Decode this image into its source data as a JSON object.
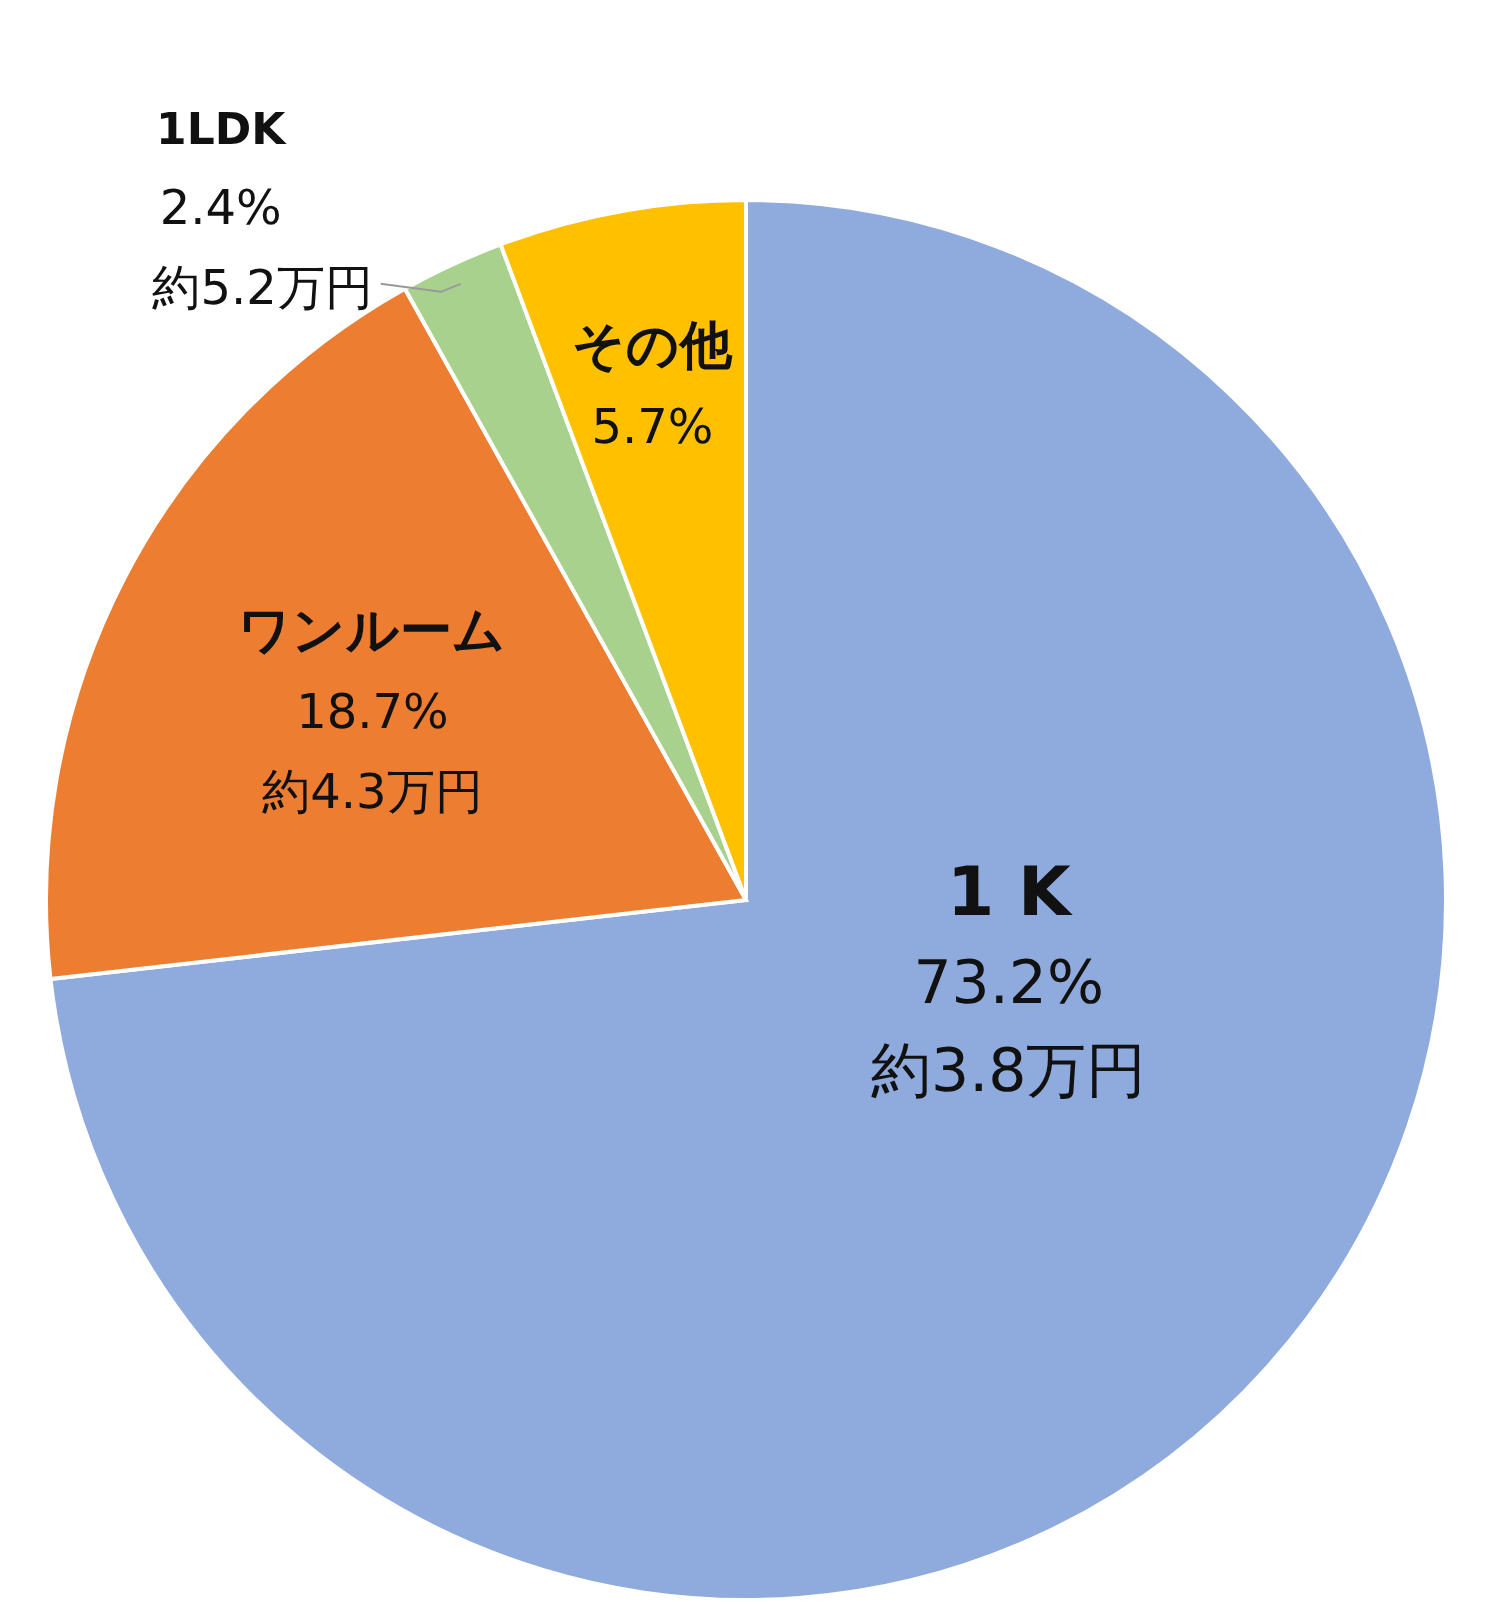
{
  "chart_data": {
    "type": "pie",
    "categories": [
      "1 K",
      "ワンルーム",
      "1LDK",
      "その他"
    ],
    "values": [
      73.2,
      18.7,
      2.4,
      5.7
    ],
    "colors": [
      "#8faadc",
      "#ed7d31",
      "#a9d18e",
      "#ffc000"
    ],
    "value_labels": [
      "73.2%\n約3.8万円",
      "18.7%\n約4.3万円",
      "2.4%\n約5.2万円",
      "5.7%"
    ]
  }
}
